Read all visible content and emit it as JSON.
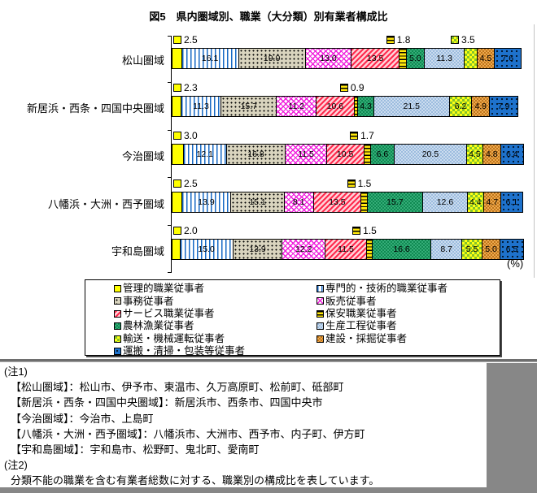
{
  "title": "図5　県内圏域別、職業（大分類）別有業者構成比",
  "percent_label": "(%)",
  "chart_data": {
    "type": "bar",
    "stacked": true,
    "orientation": "horizontal",
    "unit": "%",
    "xlim": [
      0,
      100
    ],
    "grid": false,
    "legend_position": "bottom-box-2col",
    "categories": [
      "松山圏域",
      "新居浜・西条・四国中央圏域",
      "今治圏域",
      "八幡浜・大洲・西予圏域",
      "宇和島圏域"
    ],
    "series": [
      {
        "name": "管理的職業従事者",
        "values": [
          2.5,
          2.3,
          3.0,
          2.5,
          2.0
        ]
      },
      {
        "name": "専門的・技術的職業従事者",
        "values": [
          16.1,
          11.3,
          12.1,
          13.9,
          15.0
        ]
      },
      {
        "name": "事務従事者",
        "values": [
          19.0,
          15.7,
          16.8,
          15.1,
          13.9
        ]
      },
      {
        "name": "販売従事者",
        "values": [
          13.0,
          11.2,
          11.5,
          8.1,
          12.2
        ]
      },
      {
        "name": "サービス職業従事者",
        "values": [
          13.5,
          10.6,
          10.5,
          13.5,
          11.5
        ]
      },
      {
        "name": "保安職業従事者",
        "values": [
          1.8,
          0.9,
          1.7,
          1.5,
          1.5
        ]
      },
      {
        "name": "農林漁業従事者",
        "values": [
          5.0,
          4.3,
          6.6,
          15.7,
          16.6
        ]
      },
      {
        "name": "生産工程従事者",
        "values": [
          11.3,
          21.5,
          20.5,
          12.6,
          8.7
        ]
      },
      {
        "name": "輸送・機械運転従事者",
        "values": [
          3.5,
          6.2,
          4.5,
          4.4,
          5.5
        ]
      },
      {
        "name": "建設・採掘従事者",
        "values": [
          4.5,
          4.9,
          4.8,
          4.7,
          5.0
        ]
      },
      {
        "name": "運搬・清掃・包装等従事者",
        "values": [
          7.6,
          7.9,
          6.4,
          6.1,
          6.5
        ]
      }
    ],
    "callout_segments_per_row": [
      [
        0,
        5,
        8
      ],
      [
        0,
        5
      ],
      [
        0,
        5
      ],
      [
        0,
        5
      ],
      [
        0,
        5
      ]
    ],
    "series_colors": {
      "管理的職業従事者": "#FFFF00",
      "専門的・技術的職業従事者": "#1769C4",
      "事務従事者": "#D9D4BE",
      "販売従事者": "#F01EDC",
      "サービス職業従事者": "#FF2A4E",
      "保安職業従事者": "#FFE70A",
      "農林漁業従事者": "#0F8A52",
      "生産工程従事者": "#9CBCDE",
      "輸送・機械運転従事者": "#84C42C",
      "建設・採掘従事者": "#C0761B",
      "運搬・清掃・包装等従事者": "#1E72CC"
    }
  },
  "notes": {
    "note1_title": "(注1)",
    "note1_lines": [
      "【松山圏域】：松山市、伊予市、東温市、久万高原町、松前町、砥部町",
      "【新居浜・西条・四国中央圏域】：新居浜市、西条市、四国中央市",
      "【今治圏域】：今治市、上島町",
      "【八幡浜・大洲・西予圏域】：八幡浜市、大洲市、西予市、内子町、伊方町",
      "【宇和島圏域】：宇和島市、松野町、鬼北町、愛南町"
    ],
    "note2_title": "(注2)",
    "note2_text": "分類不能の職業を含む有業者総数に対する、職業別の構成比を表しています。"
  }
}
